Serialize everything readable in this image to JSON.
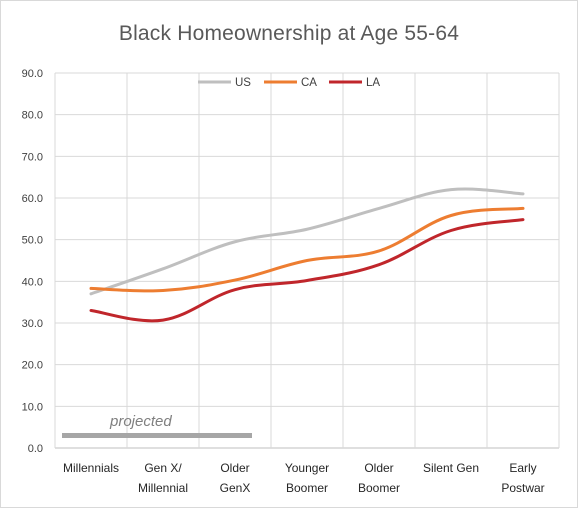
{
  "chart_data": {
    "type": "line",
    "title": "Black Homeownership  at Age 55-64",
    "categories": [
      [
        "Millennials"
      ],
      [
        "Gen X/",
        "Millennial"
      ],
      [
        "Older",
        "GenX"
      ],
      [
        "Younger",
        "Boomer"
      ],
      [
        "Older",
        "Boomer"
      ],
      [
        "Silent Gen"
      ],
      [
        "Early",
        "Postwar"
      ]
    ],
    "y_ticks": [
      "0.0",
      "10.0",
      "20.0",
      "30.0",
      "40.0",
      "50.0",
      "60.0",
      "70.0",
      "80.0",
      "90.0"
    ],
    "ylim": [
      0,
      90
    ],
    "grid": true,
    "legend_position": "top",
    "series": [
      {
        "name": "US",
        "color": "#bfbfbf",
        "values": [
          37.0,
          43.0,
          49.5,
          52.5,
          57.5,
          62.0,
          61.0
        ]
      },
      {
        "name": "CA",
        "color": "#ed7d31",
        "values": [
          38.3,
          37.8,
          40.3,
          45.0,
          47.3,
          55.8,
          57.5
        ]
      },
      {
        "name": "LA",
        "color": "#c0262b",
        "values": [
          33.0,
          30.7,
          38.0,
          40.2,
          44.0,
          52.2,
          54.8
        ]
      }
    ],
    "annotation": {
      "text": "projected",
      "color": "#a6a6a6",
      "x_range": [
        0,
        2
      ],
      "y": 3.0
    }
  }
}
